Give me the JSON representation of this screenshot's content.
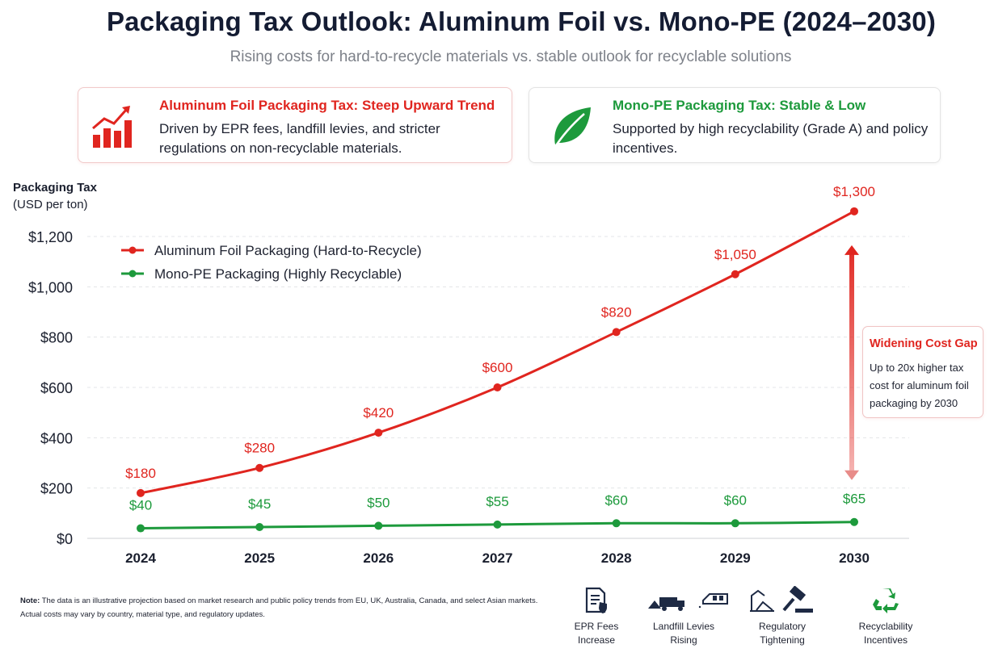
{
  "header": {
    "title": "Packaging Tax Outlook: Aluminum Foil vs. Mono-PE (2024–2030)",
    "subtitle": "Rising costs for hard-to-recycle materials vs. stable outlook for recyclable solutions"
  },
  "cards": [
    {
      "icon": "rising-bar-chart-icon",
      "heading": "Aluminum Foil Packaging Tax: Steep Upward Trend",
      "body": "Driven by EPR fees, landfill levies, and stricter regulations on non-recyclable materials.",
      "color": "#e0251f"
    },
    {
      "icon": "leaf-icon",
      "heading": "Mono-PE Packaging Tax: Stable & Low",
      "body": "Supported by high recyclability (Grade A) and policy incentives.",
      "color": "#1d9a3c"
    }
  ],
  "chart_data": {
    "type": "line",
    "title": "",
    "ylabel_line1": "Packaging Tax",
    "ylabel_line2": "(USD per ton)",
    "x": [
      "2024",
      "2025",
      "2026",
      "2027",
      "2028",
      "2029",
      "2030"
    ],
    "ylim": [
      0,
      1300
    ],
    "yticks": [
      0,
      200,
      400,
      600,
      800,
      1000,
      1200
    ],
    "ytick_labels": [
      "$0",
      "$200",
      "$400",
      "$600",
      "$800",
      "$1,000",
      "$1,200"
    ],
    "grid": "horizontal dashed",
    "legend_position": "top-left",
    "series": [
      {
        "name": "Aluminum Foil Packaging (Hard-to-Recycle)",
        "color": "#e0251f",
        "values": [
          180,
          280,
          420,
          600,
          820,
          1050,
          1300
        ],
        "labels": [
          "$180",
          "$280",
          "$420",
          "$600",
          "$820",
          "$1,050",
          "$1,300"
        ]
      },
      {
        "name": "Mono-PE Packaging (Highly Recyclable)",
        "color": "#1d9a3c",
        "values": [
          40,
          45,
          50,
          55,
          60,
          60,
          65
        ],
        "labels": [
          "$40",
          "$45",
          "$50",
          "$55",
          "$60",
          "$60",
          "$65"
        ]
      }
    ],
    "annotation": {
      "title": "Widening Cost Gap",
      "text": "Up to 20x higher tax cost for aluminum foil packaging by 2030",
      "arrow": "double-headed vertical arrow at 2030 between series"
    }
  },
  "footer": {
    "note_label": "Note:",
    "note_text": "The data is an illustrative projection based on market research and public policy trends from EU, UK, Australia, Canada, and select Asian markets. Actual costs may vary by country, material type, and regulatory updates.",
    "drivers": [
      {
        "icon": "document-shield-icon",
        "line1": "EPR Fees",
        "line2": "Increase"
      },
      {
        "icon": "landfill-truck-icon",
        "line1": "Landfill Levies",
        "line2": "Rising"
      },
      {
        "icon": "gavel-icon",
        "line1": "Regulatory",
        "line2": "Tightening"
      },
      {
        "icon": "recycle-icon",
        "line1": "Recyclability",
        "line2": "Incentives"
      }
    ]
  }
}
